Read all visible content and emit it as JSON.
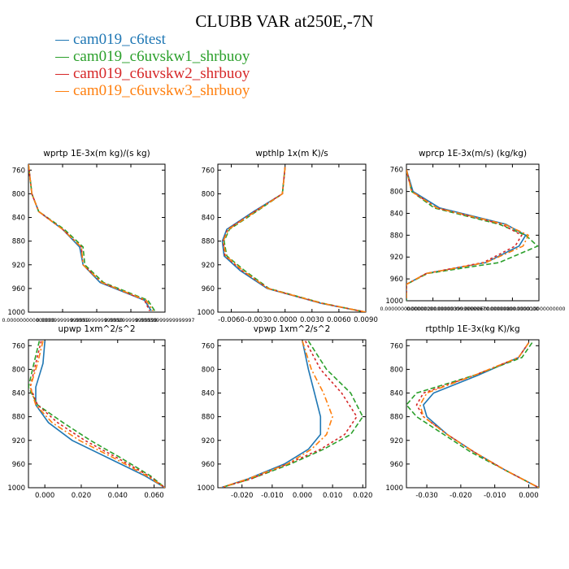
{
  "page": {
    "title": "CLUBB VAR at250E,-7N"
  },
  "legend": [
    {
      "label": "cam019_c6test",
      "color": "#1f77b4"
    },
    {
      "label": "cam019_c6uvskw1_shrbuoy",
      "color": "#2ca02c"
    },
    {
      "label": "cam019_c6uvskw2_shrbuoy",
      "color": "#d62728"
    },
    {
      "label": "cam019_c6uvskw3_shrbuoy",
      "color": "#ff7f0e"
    }
  ],
  "chart_data": [
    {
      "type": "line",
      "title": "wprtp  1E-3x(m kg)/(s kg)",
      "xlim": [
        0,
        0.00039999999999997
      ],
      "ylim": [
        1000,
        750
      ],
      "xticks": [
        0,
        9.99999999999e-05,
        0.000199999999999,
        0.000299999999999,
        0.00039999999999997
      ],
      "xtick_labels": [
        "0.000000000000000",
        "0.000099999999999",
        "0.000199999999999",
        "0.000299999999999",
        "0.00039999999999997"
      ],
      "yticks": [
        760,
        800,
        840,
        880,
        920,
        960
      ],
      "series": [
        {
          "y": [
            750,
            800,
            830,
            860,
            890,
            920,
            950,
            980,
            998
          ],
          "x": [
            0,
            1e-05,
            3e-05,
            0.0001,
            0.00015,
            0.00016,
            0.00021,
            0.00034,
            0.00036
          ]
        },
        {
          "y": [
            750,
            800,
            830,
            860,
            890,
            920,
            950,
            980,
            998
          ],
          "x": [
            0,
            1e-05,
            3e-05,
            0.000105,
            0.00016,
            0.000165,
            0.00022,
            0.00035,
            0.00037
          ]
        },
        {
          "y": [
            750,
            800,
            830,
            860,
            890,
            920,
            950,
            980,
            998
          ],
          "x": [
            0,
            1e-05,
            3e-05,
            0.0001,
            0.000155,
            0.00016,
            0.000215,
            0.00034,
            0.000355
          ]
        },
        {
          "y": [
            750,
            800,
            830,
            860,
            890,
            920,
            950,
            980,
            998
          ],
          "x": [
            0,
            1e-05,
            3e-05,
            0.0001,
            0.000155,
            0.00016,
            0.000215,
            0.000345,
            0.000365
          ]
        }
      ]
    },
    {
      "type": "line",
      "title": "wpthlp  1x(m K)/s",
      "xlim": [
        -0.0075,
        0.009
      ],
      "ylim": [
        1000,
        750
      ],
      "xticks": [
        -0.006,
        -0.003,
        0,
        0.003,
        0.006,
        0.009
      ],
      "xtick_labels": [
        "-0.0060",
        "-0.0030",
        "0.0000",
        "0.0030",
        "0.0060",
        "0.0090"
      ],
      "yticks": [
        760,
        800,
        840,
        880,
        920,
        960
      ],
      "series": [
        {
          "y": [
            755,
            800,
            830,
            860,
            880,
            905,
            930,
            960,
            985,
            1000
          ],
          "x": [
            0,
            -0.0003,
            -0.0035,
            -0.0065,
            -0.007,
            -0.0068,
            -0.005,
            -0.002,
            0.004,
            0.009
          ]
        },
        {
          "y": [
            755,
            800,
            830,
            860,
            880,
            905,
            930,
            960,
            985,
            1000
          ],
          "x": [
            0,
            -0.0003,
            -0.0032,
            -0.0062,
            -0.0068,
            -0.0065,
            -0.0045,
            -0.0018,
            0.0042,
            0.009
          ]
        },
        {
          "y": [
            755,
            800,
            830,
            860,
            880,
            905,
            930,
            960,
            985,
            1000
          ],
          "x": [
            0,
            -0.0003,
            -0.0034,
            -0.0064,
            -0.0069,
            -0.0067,
            -0.0048,
            -0.0019,
            0.0041,
            0.009
          ]
        },
        {
          "y": [
            755,
            800,
            830,
            860,
            880,
            905,
            930,
            960,
            985,
            1000
          ],
          "x": [
            0,
            -0.0003,
            -0.0033,
            -0.0063,
            -0.0069,
            -0.0066,
            -0.0047,
            -0.0019,
            0.0041,
            0.009
          ]
        }
      ]
    },
    {
      "type": "line",
      "title": "wprcp  1E-3x(m/s) (kg/kg)",
      "xlim": [
        0,
        1e-05
      ],
      "ylim": [
        1000,
        750
      ],
      "xticks": [
        0,
        2e-06,
        4e-06,
        6e-06,
        8e-06,
        1e-05
      ],
      "xtick_labels": [
        "0.000000000000000",
        "0.000002000000000",
        "0.000003999999997",
        "0.000006000000000",
        "0.000008000000000",
        "0.000010000000000"
      ],
      "yticks": [
        760,
        800,
        840,
        880,
        920,
        960
      ],
      "series": [
        {
          "y": [
            760,
            800,
            830,
            860,
            880,
            900,
            930,
            950,
            970,
            1000
          ],
          "x": [
            0,
            5e-07,
            2.5e-06,
            7.5e-06,
            9e-06,
            8.5e-06,
            6e-06,
            1.5e-06,
            0,
            0
          ]
        },
        {
          "y": [
            760,
            800,
            830,
            860,
            880,
            900,
            930,
            950,
            970,
            1000
          ],
          "x": [
            0,
            4e-07,
            2.1e-06,
            7e-06,
            9e-06,
            9.9e-06,
            7e-06,
            1.6e-06,
            0,
            0
          ]
        },
        {
          "y": [
            760,
            800,
            830,
            860,
            880,
            900,
            930,
            950,
            970,
            1000
          ],
          "x": [
            0,
            4e-07,
            2.3e-06,
            7.2e-06,
            8.7e-06,
            8.2e-06,
            5.8e-06,
            1.5e-06,
            0,
            0
          ]
        },
        {
          "y": [
            760,
            800,
            830,
            860,
            880,
            900,
            930,
            950,
            970,
            1000
          ],
          "x": [
            0,
            4e-07,
            2.3e-06,
            7.4e-06,
            9.2e-06,
            8.8e-06,
            6e-06,
            1.5e-06,
            0,
            0
          ]
        }
      ]
    },
    {
      "type": "line",
      "title": "upwp  1xm^2/s^2",
      "xlim": [
        -0.009,
        0.066
      ],
      "ylim": [
        1000,
        750
      ],
      "xticks": [
        0,
        0.02,
        0.04,
        0.06
      ],
      "xtick_labels": [
        "0.000",
        "0.020",
        "0.040",
        "0.060"
      ],
      "yticks": [
        760,
        800,
        840,
        880,
        920,
        960
      ],
      "series": [
        {
          "y": [
            752,
            790,
            830,
            860,
            890,
            920,
            950,
            980,
            1000
          ],
          "x": [
            0.0,
            -0.001,
            -0.005,
            -0.005,
            0.002,
            0.015,
            0.035,
            0.055,
            0.066
          ]
        },
        {
          "y": [
            752,
            790,
            830,
            860,
            890,
            920,
            950,
            980,
            1000
          ],
          "x": [
            -0.003,
            -0.006,
            -0.009,
            -0.004,
            0.01,
            0.025,
            0.042,
            0.058,
            0.066
          ]
        },
        {
          "y": [
            752,
            790,
            830,
            860,
            890,
            920,
            950,
            980,
            1000
          ],
          "x": [
            -0.002,
            -0.005,
            -0.008,
            -0.004,
            0.007,
            0.022,
            0.04,
            0.057,
            0.066
          ]
        },
        {
          "y": [
            752,
            790,
            830,
            860,
            890,
            920,
            950,
            980,
            1000
          ],
          "x": [
            -0.001,
            -0.004,
            -0.008,
            -0.005,
            0.004,
            0.019,
            0.038,
            0.056,
            0.066
          ]
        }
      ]
    },
    {
      "type": "line",
      "title": "vpwp  1xm^2/s^2",
      "xlim": [
        -0.028,
        0.021
      ],
      "ylim": [
        1000,
        750
      ],
      "xticks": [
        -0.02,
        -0.01,
        0,
        0.01,
        0.02
      ],
      "xtick_labels": [
        "-0.020",
        "-0.010",
        "0.000",
        "0.010",
        "0.020"
      ],
      "yticks": [
        760,
        800,
        840,
        880,
        920,
        960
      ],
      "series": [
        {
          "y": [
            752,
            800,
            840,
            880,
            910,
            935,
            960,
            985,
            1000
          ],
          "x": [
            0.0,
            0.002,
            0.004,
            0.006,
            0.006,
            0.002,
            -0.006,
            -0.018,
            -0.027
          ]
        },
        {
          "y": [
            752,
            800,
            840,
            880,
            910,
            935,
            960,
            985,
            1000
          ],
          "x": [
            0.002,
            0.008,
            0.016,
            0.02,
            0.016,
            0.007,
            -0.004,
            -0.017,
            -0.027
          ]
        },
        {
          "y": [
            752,
            800,
            840,
            880,
            910,
            935,
            960,
            985,
            1000
          ],
          "x": [
            0.001,
            0.006,
            0.013,
            0.018,
            0.014,
            0.006,
            -0.005,
            -0.017,
            -0.027
          ]
        },
        {
          "y": [
            752,
            800,
            840,
            880,
            910,
            935,
            960,
            985,
            1000
          ],
          "x": [
            0.0,
            0.003,
            0.007,
            0.01,
            0.008,
            0.003,
            -0.005,
            -0.018,
            -0.027
          ]
        }
      ]
    },
    {
      "type": "line",
      "title": "rtpthlp  1E-3x(kg K)/kg",
      "xlim": [
        -0.036,
        0.003
      ],
      "ylim": [
        1000,
        750
      ],
      "xticks": [
        -0.03,
        -0.02,
        -0.01,
        0
      ],
      "xtick_labels": [
        "-0.030",
        "-0.020",
        "-0.010",
        "0.000"
      ],
      "yticks": [
        760,
        800,
        840,
        880,
        920,
        960
      ],
      "series": [
        {
          "y": [
            755,
            780,
            810,
            840,
            860,
            880,
            910,
            940,
            970,
            1000
          ],
          "x": [
            0.0,
            -0.003,
            -0.015,
            -0.028,
            -0.031,
            -0.03,
            -0.024,
            -0.016,
            -0.007,
            0.003
          ]
        },
        {
          "y": [
            755,
            780,
            810,
            840,
            860,
            880,
            910,
            940,
            970,
            1000
          ],
          "x": [
            0.001,
            -0.002,
            -0.016,
            -0.033,
            -0.036,
            -0.033,
            -0.025,
            -0.017,
            -0.007,
            0.003
          ]
        },
        {
          "y": [
            755,
            780,
            810,
            840,
            860,
            880,
            910,
            940,
            970,
            1000
          ],
          "x": [
            0.0,
            -0.003,
            -0.016,
            -0.031,
            -0.033,
            -0.031,
            -0.024,
            -0.016,
            -0.007,
            0.003
          ]
        },
        {
          "y": [
            755,
            780,
            810,
            840,
            860,
            880,
            910,
            940,
            970,
            1000
          ],
          "x": [
            0.0,
            -0.003,
            -0.016,
            -0.03,
            -0.032,
            -0.031,
            -0.024,
            -0.016,
            -0.007,
            0.003
          ]
        }
      ]
    }
  ]
}
